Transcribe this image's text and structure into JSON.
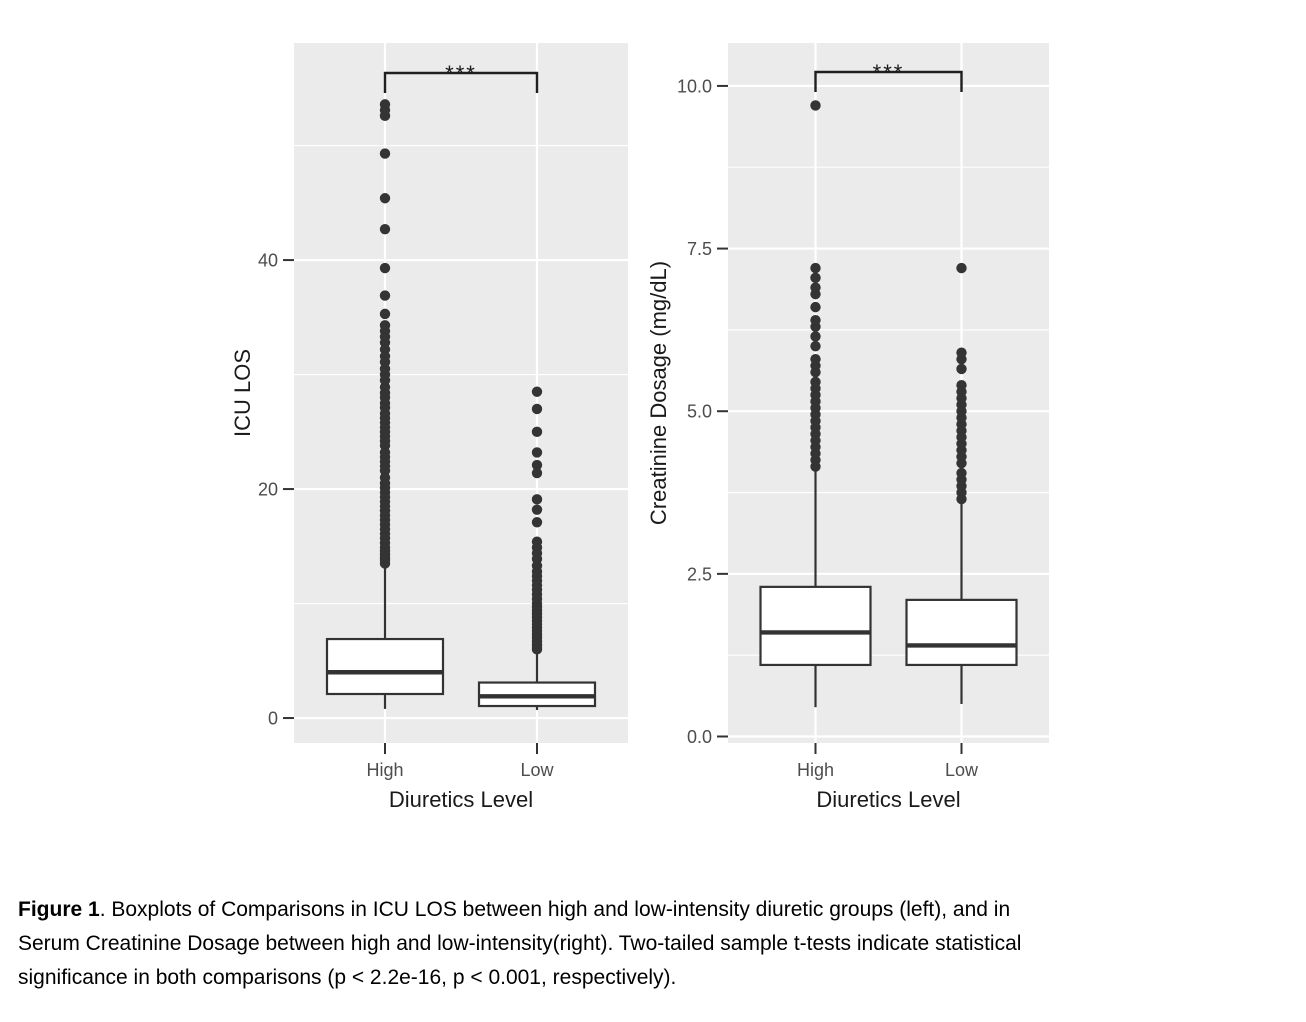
{
  "caption": {
    "label": "Figure 1",
    "lines": [
      ". Boxplots of Comparisons in ICU LOS between high and low-intensity diuretic groups (left), and in",
      "Serum Creatinine Dosage between high and low-intensity(right). Two-tailed sample t-tests indicate statistical",
      "significance in both comparisons (p < 2.2e-16, p < 0.001, respectively)."
    ]
  },
  "style": {
    "panel_bg": "#ebebeb",
    "grid_color": "#ffffff",
    "box_fill": "#ffffff",
    "box_stroke": "#333333",
    "point_color": "#343434",
    "tick_mark_color": "#333333",
    "tick_label_color": "#4d4d4d",
    "axis_title_color": "#1a1a1a",
    "bracket_color": "#1f1f1f"
  },
  "chart_data": [
    {
      "type": "boxplot",
      "title": "",
      "xlabel": "Diuretics Level",
      "ylabel": "ICU LOS",
      "categories": [
        "High",
        "Low"
      ],
      "ylim": [
        -2.18,
        58.96
      ],
      "y_ticks": [
        0,
        20,
        40
      ],
      "y_tick_labels": [
        "0",
        "20",
        "40"
      ],
      "y_minor_ticks": [
        10,
        30,
        50
      ],
      "grid": true,
      "legend": "none",
      "significance": "***",
      "series": [
        {
          "name": "High",
          "whisker_low": 0.8,
          "q1": 2.1,
          "median": 4.0,
          "q3": 6.9,
          "whisker_high": 13.5,
          "outliers": [
            53.6,
            53.1,
            52.6,
            49.3,
            45.4,
            42.7,
            39.3,
            36.9,
            35.3,
            34.3,
            33.8,
            33.3,
            32.8,
            32.2,
            31.6,
            31.1,
            30.5,
            30.0,
            29.5,
            28.9,
            28.4,
            28.0,
            27.5,
            27.1,
            26.6,
            26.2,
            25.8,
            25.4,
            25.0,
            24.6,
            24.2,
            23.8,
            23.2,
            22.8,
            22.4,
            22.0,
            21.6,
            21.0,
            20.5,
            20.1,
            19.7,
            19.3,
            18.9,
            18.5,
            18.1,
            17.7,
            17.3,
            16.9,
            16.5,
            16.1,
            15.7,
            15.3,
            14.9,
            14.6,
            14.3,
            14.0,
            13.8,
            13.5
          ]
        },
        {
          "name": "Low",
          "whisker_low": 0.7,
          "q1": 1.05,
          "median": 1.9,
          "q3": 3.1,
          "whisker_high": 5.8,
          "outliers": [
            28.5,
            27.0,
            25.0,
            23.2,
            22.1,
            21.4,
            19.1,
            18.2,
            17.1,
            15.4,
            14.9,
            14.4,
            13.9,
            13.3,
            12.8,
            12.4,
            12.0,
            11.6,
            11.2,
            10.8,
            10.4,
            10.0,
            9.7,
            9.4,
            9.1,
            8.8,
            8.5,
            8.2,
            7.9,
            7.6,
            7.3,
            7.0,
            6.7,
            6.4,
            6.2,
            6.0
          ]
        }
      ]
    },
    {
      "type": "boxplot",
      "title": "",
      "xlabel": "Diuretics Level",
      "ylabel": "Creatinine Dosage (mg/dL)",
      "categories": [
        "High",
        "Low"
      ],
      "ylim": [
        -0.1,
        10.66
      ],
      "y_ticks": [
        0,
        2.5,
        5,
        7.5,
        10
      ],
      "y_tick_labels": [
        "0.0",
        "2.5",
        "5.0",
        "7.5",
        "10.0"
      ],
      "y_minor_ticks": [
        1.25,
        3.75,
        6.25,
        8.75
      ],
      "grid": true,
      "legend": "none",
      "significance": "***",
      "series": [
        {
          "name": "High",
          "whisker_low": 0.45,
          "q1": 1.1,
          "median": 1.6,
          "q3": 2.3,
          "whisker_high": 4.1,
          "outliers": [
            9.7,
            7.2,
            7.05,
            6.9,
            6.8,
            6.6,
            6.4,
            6.3,
            6.15,
            6.0,
            5.8,
            5.7,
            5.6,
            5.45,
            5.35,
            5.25,
            5.15,
            5.05,
            4.95,
            4.85,
            4.75,
            4.65,
            4.55,
            4.45,
            4.35,
            4.25,
            4.15
          ]
        },
        {
          "name": "Low",
          "whisker_low": 0.5,
          "q1": 1.1,
          "median": 1.4,
          "q3": 2.1,
          "whisker_high": 3.6,
          "outliers": [
            7.2,
            5.9,
            5.8,
            5.65,
            5.4,
            5.3,
            5.2,
            5.1,
            5.0,
            4.9,
            4.8,
            4.7,
            4.6,
            4.5,
            4.4,
            4.3,
            4.2,
            4.05,
            3.95,
            3.85,
            3.75,
            3.65
          ]
        }
      ]
    }
  ]
}
